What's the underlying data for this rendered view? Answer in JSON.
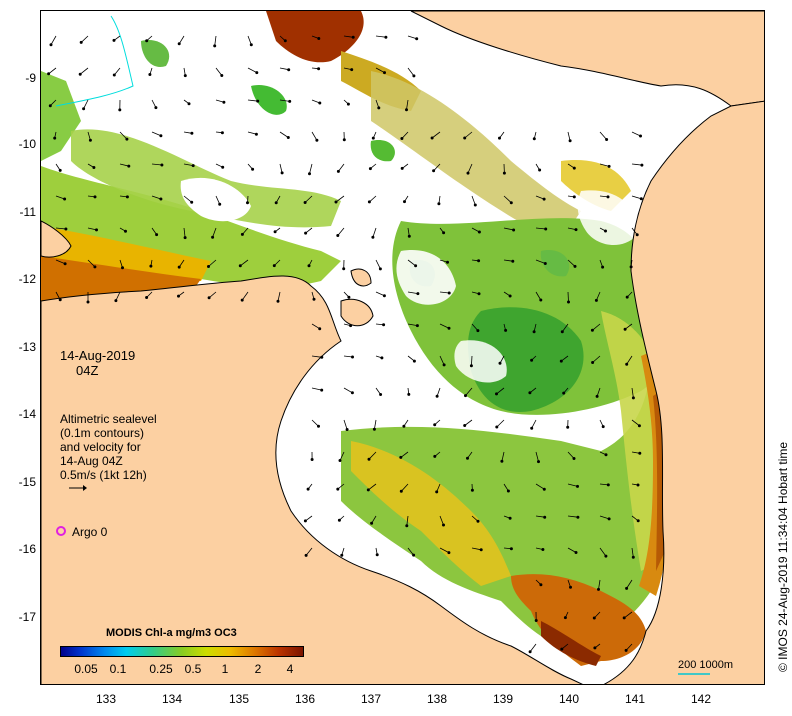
{
  "map": {
    "lat_ticks": [
      "-9",
      "-10",
      "-11",
      "-12",
      "-13",
      "-14",
      "-15",
      "-16",
      "-17"
    ],
    "lon_ticks": [
      "133",
      "134",
      "135",
      "136",
      "137",
      "138",
      "139",
      "140",
      "141",
      "142"
    ],
    "land_color": "#fcd0a2",
    "no_data_color": "#ffffff"
  },
  "annotations": {
    "date": "14-Aug-2019",
    "time": "04Z",
    "legend_lines": [
      "Altimetric sealevel",
      "(0.1m contours)",
      "and velocity for",
      "14-Aug 04Z",
      "0.5m/s (1kt 12h)"
    ],
    "argo_label": "Argo 0",
    "argo_color": "#e020e0"
  },
  "colorbar": {
    "title": "MODIS Chl-a mg/m3 OC3",
    "ticks": [
      "0.05",
      "0.1",
      "0.25",
      "0.5",
      "1",
      "2",
      "4"
    ]
  },
  "scale": {
    "label": "200  1000m",
    "color": "#40c8c8"
  },
  "credit": "© IMOS 24-Aug-2019 11:34:04 Hobart time"
}
